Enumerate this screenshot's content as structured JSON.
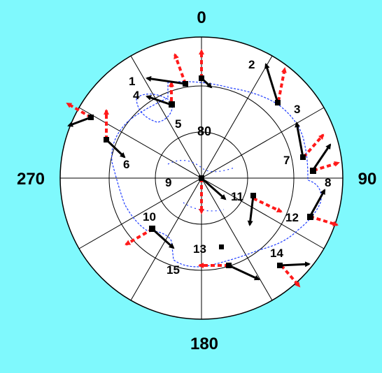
{
  "colors": {
    "background": "#7ff9fd",
    "disc": "#ffffff",
    "outline": "#000000",
    "coastline": "#1e3cff",
    "black_arrow": "#000000",
    "red_arrow": "#ff1a1a"
  },
  "axis_labels": {
    "top": "0",
    "right": "90",
    "bottom": "180",
    "left": "270",
    "inner_circle": "80"
  },
  "stations": [
    {
      "label": "1"
    },
    {
      "label": "2"
    },
    {
      "label": "3"
    },
    {
      "label": "4"
    },
    {
      "label": "5"
    },
    {
      "label": "6"
    },
    {
      "label": "7"
    },
    {
      "label": "8"
    },
    {
      "label": "9"
    },
    {
      "label": "10"
    },
    {
      "label": "11"
    },
    {
      "label": "12"
    },
    {
      "label": "13"
    },
    {
      "label": "14"
    },
    {
      "label": "15"
    }
  ]
}
